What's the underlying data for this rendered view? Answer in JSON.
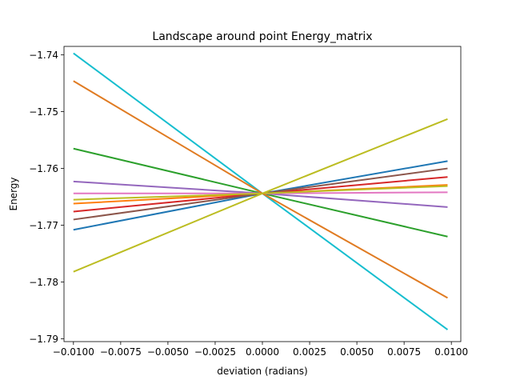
{
  "chart_data": {
    "type": "line",
    "title": "Landscape around point Energy_matrix",
    "xlabel": "deviation (radians)",
    "ylabel": "Energy",
    "xlim": [
      -0.0105,
      0.0105
    ],
    "ylim": [
      -1.7905,
      -1.7385
    ],
    "grid": false,
    "x_ticks": [
      -0.01,
      -0.0075,
      -0.005,
      -0.0025,
      0.0,
      0.0025,
      0.005,
      0.0075,
      0.01
    ],
    "x_tick_labels": [
      "−0.0100",
      "−0.0075",
      "−0.0050",
      "−0.0025",
      "0.0000",
      "0.0025",
      "0.0050",
      "0.0075",
      "0.0100"
    ],
    "y_ticks": [
      -1.79,
      -1.78,
      -1.77,
      -1.76,
      -1.75,
      -1.74
    ],
    "y_tick_labels": [
      "−1.79",
      "−1.78",
      "−1.77",
      "−1.76",
      "−1.75",
      "−1.74"
    ],
    "series": [
      {
        "color": "#1f77b4",
        "x": [
          -0.01,
          0.0,
          0.0098
        ],
        "y": [
          -1.7708,
          -1.7644,
          -1.7587
        ]
      },
      {
        "color": "#ff7f0e",
        "x": [
          -0.01,
          0.0,
          0.0098
        ],
        "y": [
          -1.7662,
          -1.7644,
          -1.7629
        ]
      },
      {
        "color": "#2ca02c",
        "x": [
          -0.01,
          0.0,
          0.0098
        ],
        "y": [
          -1.7565,
          -1.7644,
          -1.772
        ]
      },
      {
        "color": "#d62728",
        "x": [
          -0.01,
          0.0,
          0.0098
        ],
        "y": [
          -1.7676,
          -1.7644,
          -1.7615
        ]
      },
      {
        "color": "#9467bd",
        "x": [
          -0.01,
          0.0,
          0.0098
        ],
        "y": [
          -1.7623,
          -1.7644,
          -1.7668
        ]
      },
      {
        "color": "#8c564b",
        "x": [
          -0.01,
          0.0,
          0.0098
        ],
        "y": [
          -1.769,
          -1.7644,
          -1.76
        ]
      },
      {
        "color": "#e377c2",
        "x": [
          -0.01,
          0.0,
          0.0098
        ],
        "y": [
          -1.7644,
          -1.7644,
          -1.7642
        ]
      },
      {
        "color": "#bcbd22",
        "x": [
          -0.01,
          0.0,
          0.0098
        ],
        "y": [
          -1.7655,
          -1.7644,
          -1.7631
        ]
      },
      {
        "color": "#17becf",
        "x": [
          -0.01,
          0.0,
          0.0098
        ],
        "y": [
          -1.7397,
          -1.7644,
          -1.7884
        ]
      },
      {
        "color": "#e07b22",
        "x": [
          -0.01,
          0.0,
          0.0098
        ],
        "y": [
          -1.7446,
          -1.7644,
          -1.7828
        ]
      },
      {
        "color": "#bcbd22",
        "x": [
          -0.01,
          0.0,
          0.0098
        ],
        "y": [
          -1.7782,
          -1.7644,
          -1.7513
        ]
      }
    ]
  }
}
